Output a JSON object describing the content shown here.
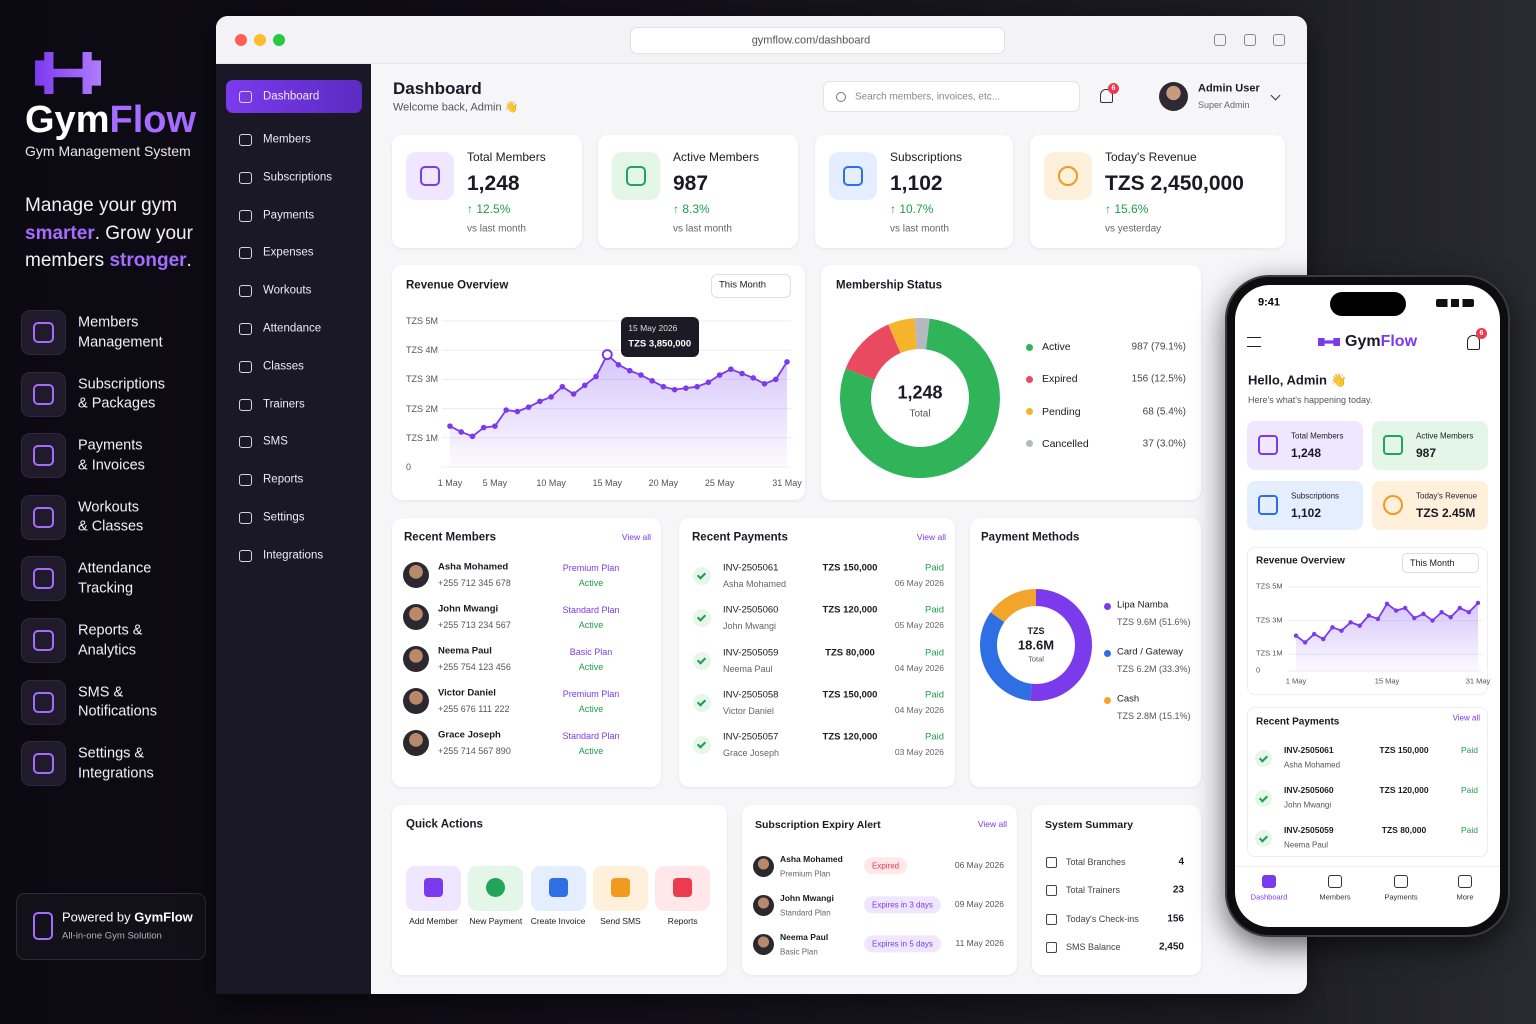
{
  "brand": {
    "name_a": "Gym",
    "name_b": "Flow",
    "tagline": "Gym Management System"
  },
  "hero": [
    "Manage your gym ",
    "smarter",
    ". Grow your members ",
    "stronger",
    "."
  ],
  "features": [
    [
      "Members",
      "Management"
    ],
    [
      "Subscriptions",
      "& Packages"
    ],
    [
      "Payments",
      "& Invoices"
    ],
    [
      "Workouts",
      "& Classes"
    ],
    [
      "Attendance",
      "Tracking"
    ],
    [
      "Reports &",
      "Analytics"
    ],
    [
      "SMS &",
      "Notifications"
    ],
    [
      "Settings &",
      "Integrations"
    ]
  ],
  "powered": {
    "prefix": "Powered by ",
    "name": "GymFlow",
    "sub": "All-in-one Gym Solution"
  },
  "browser": {
    "url": "gymflow.com/dashboard"
  },
  "sidebar": [
    "Dashboard",
    "Members",
    "Subscriptions",
    "Payments",
    "Expenses",
    "Workouts",
    "Attendance",
    "Classes",
    "Trainers",
    "SMS",
    "Reports",
    "Settings",
    "Integrations"
  ],
  "header": {
    "title": "Dashboard",
    "welcome": "Welcome back, Admin 👋",
    "search": "Search members, invoices, etc...",
    "notifications": "6",
    "user": "Admin User",
    "role": "Super Admin"
  },
  "stats": [
    {
      "label": "Total Members",
      "value": "1,248",
      "change": "↑ 12.5%",
      "note": "vs last month"
    },
    {
      "label": "Active Members",
      "value": "987",
      "change": "↑ 8.3%",
      "note": "vs last month"
    },
    {
      "label": "Subscriptions",
      "value": "1,102",
      "change": "↑ 10.7%",
      "note": "vs last month"
    },
    {
      "label": "Today's Revenue",
      "value": "TZS 2,450,000",
      "change": "↑ 15.6%",
      "note": "vs yesterday"
    }
  ],
  "chart_data": [
    {
      "type": "line",
      "title": "Revenue Overview",
      "filter": "This Month",
      "categories": [
        "1 May",
        null,
        null,
        null,
        "5 May",
        null,
        null,
        null,
        null,
        "10 May",
        null,
        null,
        null,
        null,
        "15 May",
        null,
        null,
        null,
        null,
        "20 May",
        null,
        null,
        null,
        null,
        "25 May",
        null,
        null,
        null,
        null,
        null,
        "31 May"
      ],
      "values": [
        1400000,
        1200000,
        1050000,
        1350000,
        1400000,
        1950000,
        1900000,
        2050000,
        2250000,
        2400000,
        2750000,
        2500000,
        2800000,
        3100000,
        3850000,
        3500000,
        3300000,
        3150000,
        2950000,
        2750000,
        2650000,
        2700000,
        2750000,
        2900000,
        3150000,
        3350000,
        3200000,
        3050000,
        2850000,
        3000000,
        3600000
      ],
      "color": "#7c3aed",
      "ylim": [
        0,
        5000000
      ],
      "yticks": [
        0,
        {
          "value": 1000000,
          "label": "TZS 1M"
        },
        {
          "value": 2000000,
          "label": "TZS 2M"
        },
        {
          "value": 3000000,
          "label": "TZS 3M"
        },
        {
          "value": 4000000,
          "label": "TZS 4M"
        },
        {
          "value": 5000000,
          "label": "TZS 5M"
        }
      ],
      "grid": true,
      "tooltip": {
        "title": "15 May 2026",
        "text": "TZS 3,850,000"
      }
    },
    {
      "type": "donut",
      "title": "Membership Status",
      "categories": [
        "Active",
        "Expired",
        "Pending",
        "Cancelled"
      ],
      "values": [
        987,
        156,
        68,
        37
      ],
      "value_labels": [
        "987 (79.1%)",
        "156 (12.5%)",
        "68 (5.4%)",
        "37 (3.0%)"
      ],
      "colors": [
        "#2fb45a",
        "#ea4a5f",
        "#f6b42c",
        "#b5b8bf"
      ],
      "center": {
        "value": "1,248",
        "label": "Total"
      }
    },
    {
      "type": "donut",
      "title": "Payment Methods",
      "categories": [
        "Lipa Namba",
        "Card / Gateway",
        "Cash"
      ],
      "values": [
        9600000,
        6200000,
        2800000
      ],
      "value_labels": [
        "TZS 9.6M (51.6%)",
        "TZS 6.2M (33.3%)",
        "TZS 2.8M (15.1%)"
      ],
      "colors": [
        "#7c3aed",
        "#2f6fe4",
        "#f3a52b"
      ],
      "center": {
        "prefix": "TZS",
        "value": "18.6M",
        "label": "Total"
      }
    },
    {
      "type": "line",
      "title": "Revenue Overview",
      "filter": "This Month",
      "categories": [
        "1 May",
        null,
        null,
        null,
        null,
        null,
        null,
        null,
        null,
        null,
        "15 May",
        null,
        null,
        null,
        null,
        null,
        null,
        null,
        null,
        null,
        "31 May"
      ],
      "values": [
        2100000,
        1700000,
        2200000,
        1900000,
        2600000,
        2400000,
        2900000,
        2700000,
        3300000,
        3100000,
        4000000,
        3600000,
        3750000,
        3150000,
        3400000,
        3000000,
        3500000,
        3200000,
        3750000,
        3500000,
        4050000
      ],
      "color": "#7c3aed",
      "ylim": [
        0,
        5000000
      ],
      "yticks": [
        0,
        {
          "value": 1000000,
          "label": "TZS 1M"
        },
        {
          "value": 3000000,
          "label": "TZS 3M"
        },
        {
          "value": 5000000,
          "label": "TZS 5M"
        }
      ],
      "grid": true
    }
  ],
  "recent_members": {
    "title": "Recent Members",
    "view_all": "View all",
    "rows": [
      {
        "name": "Asha Mohamed",
        "phone": "+255 712 345 678",
        "plan": "Premium Plan",
        "status": "Active"
      },
      {
        "name": "John Mwangi",
        "phone": "+255 713 234 567",
        "plan": "Standard Plan",
        "status": "Active"
      },
      {
        "name": "Neema Paul",
        "phone": "+255 754 123 456",
        "plan": "Basic Plan",
        "status": "Active"
      },
      {
        "name": "Victor Daniel",
        "phone": "+255 676 111 222",
        "plan": "Premium Plan",
        "status": "Active"
      },
      {
        "name": "Grace Joseph",
        "phone": "+255 714 567 890",
        "plan": "Standard Plan",
        "status": "Active"
      }
    ]
  },
  "recent_payments": {
    "title": "Recent Payments",
    "view_all": "View all",
    "rows": [
      {
        "invoice": "INV-2505061",
        "name": "Asha Mohamed",
        "amount": "TZS 150,000",
        "status": "Paid",
        "date": "06 May 2026"
      },
      {
        "invoice": "INV-2505060",
        "name": "John Mwangi",
        "amount": "TZS 120,000",
        "status": "Paid",
        "date": "05 May 2026"
      },
      {
        "invoice": "INV-2505059",
        "name": "Neema Paul",
        "amount": "TZS 80,000",
        "status": "Paid",
        "date": "04 May 2026"
      },
      {
        "invoice": "INV-2505058",
        "name": "Victor Daniel",
        "amount": "TZS 150,000",
        "status": "Paid",
        "date": "04 May 2026"
      },
      {
        "invoice": "INV-2505057",
        "name": "Grace Joseph",
        "amount": "TZS 120,000",
        "status": "Paid",
        "date": "03 May 2026"
      }
    ]
  },
  "quick_actions": {
    "title": "Quick Actions",
    "items": [
      "Add Member",
      "New Payment",
      "Create Invoice",
      "Send SMS",
      "Reports"
    ]
  },
  "expiry": {
    "title": "Subscription Expiry Alert",
    "view_all": "View all",
    "rows": [
      {
        "name": "Asha Mohamed",
        "plan": "Premium Plan",
        "badge": "Expired",
        "date": "06 May 2026"
      },
      {
        "name": "John Mwangi",
        "plan": "Standard Plan",
        "badge": "Expires in 3 days",
        "date": "09 May 2026"
      },
      {
        "name": "Neema Paul",
        "plan": "Basic Plan",
        "badge": "Expires in 5 days",
        "date": "11 May 2026"
      }
    ]
  },
  "summary": {
    "title": "System Summary",
    "rows": [
      {
        "label": "Total Branches",
        "value": "4"
      },
      {
        "label": "Total Trainers",
        "value": "23"
      },
      {
        "label": "Today's Check-ins",
        "value": "156"
      },
      {
        "label": "SMS Balance",
        "value": "2,450"
      }
    ]
  },
  "phone": {
    "time": "9:41",
    "notifications": "6",
    "greeting": "Hello, Admin 👋",
    "sub": "Here's what's happening today.",
    "cards": [
      {
        "label": "Total Members",
        "value": "1,248"
      },
      {
        "label": "Active Members",
        "value": "987"
      },
      {
        "label": "Subscriptions",
        "value": "1,102"
      },
      {
        "label": "Today's Revenue",
        "value": "TZS 2.45M"
      }
    ],
    "payments": {
      "title": "Recent Payments",
      "view_all": "View all",
      "rows": [
        {
          "invoice": "INV-2505061",
          "name": "Asha Mohamed",
          "amount": "TZS 150,000",
          "status": "Paid"
        },
        {
          "invoice": "INV-2505060",
          "name": "John Mwangi",
          "amount": "TZS 120,000",
          "status": "Paid"
        },
        {
          "invoice": "INV-2505059",
          "name": "Neema Paul",
          "amount": "TZS 80,000",
          "status": "Paid"
        }
      ]
    },
    "nav": [
      "Dashboard",
      "Members",
      "Payments",
      "More"
    ]
  }
}
